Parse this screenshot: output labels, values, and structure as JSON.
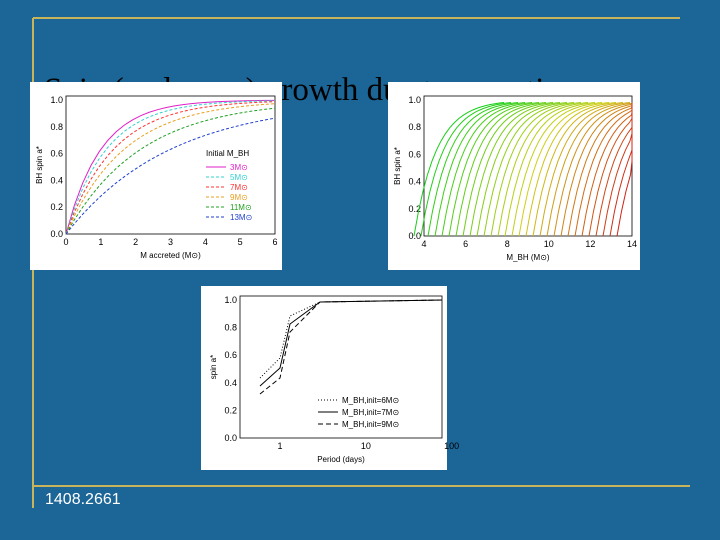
{
  "slide": {
    "title": "Spin (and mass) growth due to accretion",
    "footer": "1408.2661"
  },
  "panels": [
    {
      "y_label": "BH spin a*",
      "x_label": "M accreted (M⊙)",
      "x_ticks": [
        "0",
        "1",
        "2",
        "3",
        "4",
        "5",
        "6"
      ],
      "y_ticks": [
        "0.0",
        "0.2",
        "0.4",
        "0.6",
        "0.8",
        "1.0"
      ],
      "legend_title": "Initial M_BH",
      "legend": [
        "3M⊙",
        "5M⊙",
        "7M⊙",
        "9M⊙",
        "11M⊙",
        "13M⊙"
      ]
    },
    {
      "y_label": "BH spin a*",
      "x_label": "M_BH (M⊙)",
      "x_ticks": [
        "4",
        "6",
        "8",
        "10",
        "12",
        "14"
      ],
      "y_ticks": [
        "0.0",
        "0.2",
        "0.4",
        "0.6",
        "0.8",
        "1.0"
      ]
    },
    {
      "y_label": "spin a*",
      "x_label": "Period (days)",
      "x_ticks": [
        "1",
        "10",
        "100"
      ],
      "y_ticks": [
        "0.0",
        "0.2",
        "0.4",
        "0.6",
        "0.8",
        "1.0"
      ],
      "legend": [
        "M_BH,init=6M⊙",
        "M_BH,init=7M⊙",
        "M_BH,init=9M⊙"
      ]
    }
  ]
}
